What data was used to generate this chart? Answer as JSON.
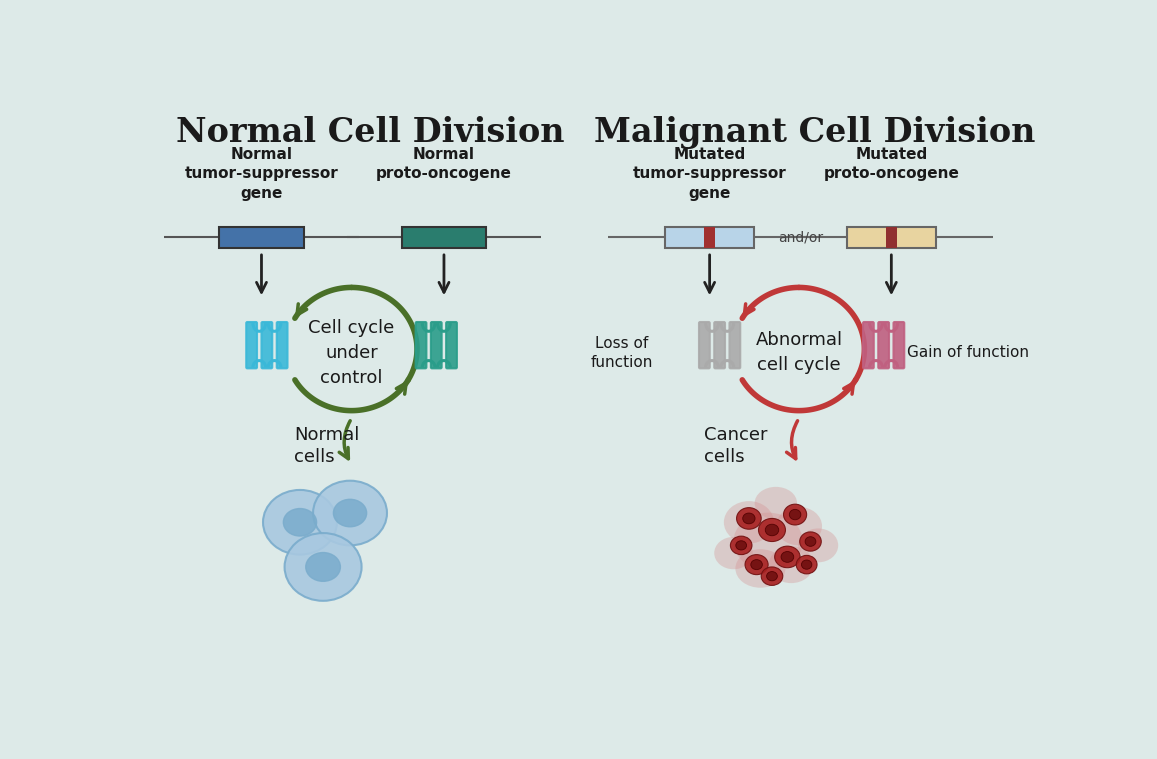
{
  "bg_color": "#ddeae8",
  "title_left": "Normal Cell Division",
  "title_right": "Malignant Cell Division",
  "title_fontsize": 24,
  "title_fontweight": "bold",
  "label_left_tumor": "Normal\ntumor-suppressor\ngene",
  "label_left_proto": "Normal\nproto-oncogene",
  "label_right_tumor": "Mutated\ntumor-suppressor\ngene",
  "label_right_proto": "Mutated\nproto-oncogene",
  "label_fontsize": 11,
  "label_fontweight": "bold",
  "cycle_left_text": "Cell cycle\nunder\ncontrol",
  "cycle_right_text": "Abnormal\ncell cycle",
  "normal_cells_text": "Normal\ncells",
  "cancer_cells_text": "Cancer\ncells",
  "loss_function_text": "Loss of\nfunction",
  "gain_function_text": "Gain of function",
  "and_or_text": "and/or",
  "normal_gene_color": "#4472a8",
  "proto_gene_color": "#2a7d6e",
  "mutated_tumor_color_bg": "#b8d4e8",
  "mutated_tumor_color_stripe": "#a03030",
  "mutated_proto_color_bg": "#e8d4a0",
  "mutated_proto_color_stripe": "#903030",
  "green_arrow_color": "#4a7028",
  "red_arrow_color": "#c03838",
  "normal_cell_fill": "#a8c8e0",
  "normal_cell_edge": "#7aaccc",
  "normal_nucleus_fill": "#7aaccc",
  "cancer_cell_fill": "#a02020",
  "cancer_cell_edge": "#701010",
  "cancer_nucleus_fill": "#701010",
  "protein_blue": "#3ab8d8",
  "protein_teal": "#2a9d8a",
  "protein_gray": "#aaaaaa",
  "protein_pink": "#c06080"
}
